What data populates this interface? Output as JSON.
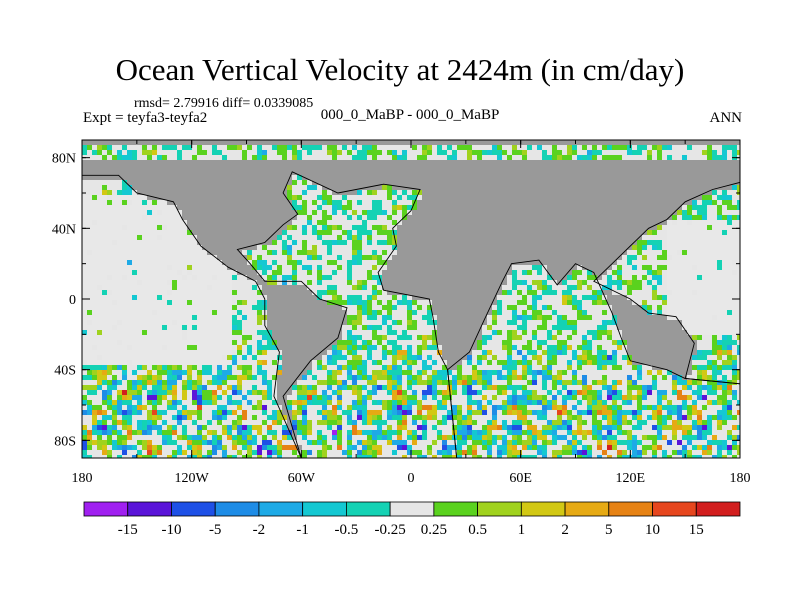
{
  "header": {
    "title": "Ocean Vertical Velocity at 2424m (in cm/day)",
    "stats": "rmsd= 2.79916 diff= 0.0339085",
    "expt": "Expt = teyfa3-teyfa2",
    "case": "000_0_MaBP - 000_0_MaBP",
    "season": "ANN"
  },
  "axes": {
    "lat_labels": [
      "80N",
      "40N",
      "0",
      "40S",
      "80S"
    ],
    "lon_labels": [
      "180",
      "120W",
      "60W",
      "0",
      "60E",
      "120E",
      "180"
    ]
  },
  "colorbar": {
    "labels": [
      "-15",
      "-10",
      "-5",
      "-2",
      "-1",
      "-0.5",
      "-0.25",
      "0.25",
      "0.5",
      "1",
      "2",
      "5",
      "10",
      "15"
    ],
    "colors": [
      "#a020f0",
      "#5a14d8",
      "#1e50e6",
      "#1e8ce6",
      "#1eaae6",
      "#14c8d2",
      "#14d2b4",
      "#e6e6e6",
      "#5ad21e",
      "#a0d21e",
      "#d2c814",
      "#e6aa14",
      "#e68214",
      "#e6461e",
      "#d21e1e"
    ]
  },
  "colors": {
    "land": "#999999",
    "no_data": "#e8e8e8",
    "border": "#000000"
  }
}
